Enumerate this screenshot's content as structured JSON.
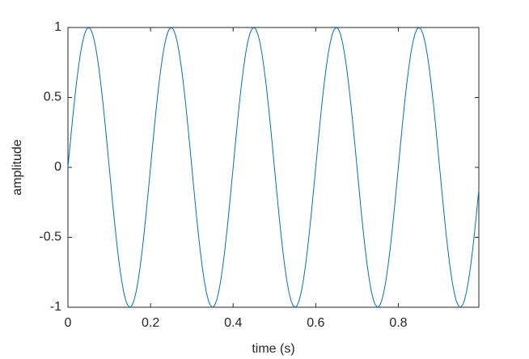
{
  "chart_data": {
    "type": "line",
    "xlabel": "time (s)",
    "ylabel": "amplitude",
    "color": "#0072bd",
    "xlim": [
      0,
      0.995
    ],
    "ylim": [
      -1,
      1
    ],
    "xticks": [
      0,
      0.2,
      0.4,
      0.6,
      0.8
    ],
    "yticks": [
      -1,
      -0.5,
      0,
      0.5,
      1
    ],
    "x": [
      0,
      0.005,
      0.01,
      0.015,
      0.02,
      0.025,
      0.03,
      0.035,
      0.04,
      0.045,
      0.05,
      0.055,
      0.06,
      0.065,
      0.07,
      0.075,
      0.08,
      0.085,
      0.09,
      0.095,
      0.1,
      0.105,
      0.11,
      0.115,
      0.12,
      0.125,
      0.13,
      0.135,
      0.14,
      0.145,
      0.15,
      0.155,
      0.16,
      0.165,
      0.17,
      0.175,
      0.18,
      0.185,
      0.19,
      0.195,
      0.2,
      0.205,
      0.21,
      0.215,
      0.22,
      0.225,
      0.23,
      0.235,
      0.24,
      0.245,
      0.25,
      0.255,
      0.26,
      0.265,
      0.27,
      0.275,
      0.28,
      0.285,
      0.29,
      0.295,
      0.3,
      0.305,
      0.31,
      0.315,
      0.32,
      0.325,
      0.33,
      0.335,
      0.34,
      0.345,
      0.35,
      0.355,
      0.36,
      0.365,
      0.37,
      0.375,
      0.38,
      0.385,
      0.39,
      0.395,
      0.4,
      0.405,
      0.41,
      0.415,
      0.42,
      0.425,
      0.43,
      0.435,
      0.44,
      0.445,
      0.45,
      0.455,
      0.46,
      0.465,
      0.47,
      0.475,
      0.48,
      0.485,
      0.49,
      0.495,
      0.5,
      0.505,
      0.51,
      0.515,
      0.52,
      0.525,
      0.53,
      0.535,
      0.54,
      0.545,
      0.55,
      0.555,
      0.56,
      0.565,
      0.57,
      0.575,
      0.58,
      0.585,
      0.59,
      0.595,
      0.6,
      0.605,
      0.61,
      0.615,
      0.62,
      0.625,
      0.63,
      0.635,
      0.64,
      0.645,
      0.65,
      0.655,
      0.66,
      0.665,
      0.67,
      0.675,
      0.68,
      0.685,
      0.69,
      0.695,
      0.7,
      0.705,
      0.71,
      0.715,
      0.72,
      0.725,
      0.73,
      0.735,
      0.74,
      0.745,
      0.75,
      0.755,
      0.76,
      0.765,
      0.77,
      0.775,
      0.78,
      0.785,
      0.79,
      0.795,
      0.8,
      0.805,
      0.81,
      0.815,
      0.82,
      0.825,
      0.83,
      0.835,
      0.84,
      0.845,
      0.85,
      0.855,
      0.86,
      0.865,
      0.87,
      0.875,
      0.88,
      0.885,
      0.89,
      0.895,
      0.9,
      0.905,
      0.91,
      0.915,
      0.92,
      0.925,
      0.93,
      0.935,
      0.94,
      0.945,
      0.95,
      0.955,
      0.96,
      0.965,
      0.97,
      0.975,
      0.98,
      0.985,
      0.99,
      0.995
    ],
    "values": [
      0,
      0.1564,
      0.309,
      0.454,
      0.5878,
      0.7071,
      0.809,
      0.891,
      0.9511,
      0.9877,
      1,
      0.9877,
      0.9511,
      0.891,
      0.809,
      0.7071,
      0.5878,
      0.454,
      0.309,
      0.1564,
      0,
      -0.1564,
      -0.309,
      -0.454,
      -0.5878,
      -0.7071,
      -0.809,
      -0.891,
      -0.9511,
      -0.9877,
      -1,
      -0.9877,
      -0.9511,
      -0.891,
      -0.809,
      -0.7071,
      -0.5878,
      -0.454,
      -0.309,
      -0.1564,
      0,
      0.1564,
      0.309,
      0.454,
      0.5878,
      0.7071,
      0.809,
      0.891,
      0.9511,
      0.9877,
      1,
      0.9877,
      0.9511,
      0.891,
      0.809,
      0.7071,
      0.5878,
      0.454,
      0.309,
      0.1564,
      0,
      -0.1564,
      -0.309,
      -0.454,
      -0.5878,
      -0.7071,
      -0.809,
      -0.891,
      -0.9511,
      -0.9877,
      -1,
      -0.9877,
      -0.9511,
      -0.891,
      -0.809,
      -0.7071,
      -0.5878,
      -0.454,
      -0.309,
      -0.1564,
      0,
      0.1564,
      0.309,
      0.454,
      0.5878,
      0.7071,
      0.809,
      0.891,
      0.9511,
      0.9877,
      1,
      0.9877,
      0.9511,
      0.891,
      0.809,
      0.7071,
      0.5878,
      0.454,
      0.309,
      0.1564,
      0,
      -0.1564,
      -0.309,
      -0.454,
      -0.5878,
      -0.7071,
      -0.809,
      -0.891,
      -0.9511,
      -0.9877,
      -1,
      -0.9877,
      -0.9511,
      -0.891,
      -0.809,
      -0.7071,
      -0.5878,
      -0.454,
      -0.309,
      -0.1564,
      0,
      0.1564,
      0.309,
      0.454,
      0.5878,
      0.7071,
      0.809,
      0.891,
      0.9511,
      0.9877,
      1,
      0.9877,
      0.9511,
      0.891,
      0.809,
      0.7071,
      0.5878,
      0.454,
      0.309,
      0.1564,
      0,
      -0.1564,
      -0.309,
      -0.454,
      -0.5878,
      -0.7071,
      -0.809,
      -0.891,
      -0.9511,
      -0.9877,
      -1,
      -0.9877,
      -0.9511,
      -0.891,
      -0.809,
      -0.7071,
      -0.5878,
      -0.454,
      -0.309,
      -0.1564,
      0,
      0.1564,
      0.309,
      0.454,
      0.5878,
      0.7071,
      0.809,
      0.891,
      0.9511,
      0.9877,
      1,
      0.9877,
      0.9511,
      0.891,
      0.809,
      0.7071,
      0.5878,
      0.454,
      0.309,
      0.1564,
      0,
      -0.1564,
      -0.309,
      -0.454,
      -0.5878,
      -0.7071,
      -0.809,
      -0.891,
      -0.9511,
      -0.9877,
      -1,
      -0.9877,
      -0.9511,
      -0.891,
      -0.809,
      -0.7071,
      -0.5878,
      -0.454,
      -0.309,
      -0.1564
    ]
  }
}
